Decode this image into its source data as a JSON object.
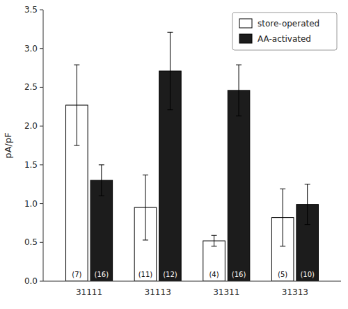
{
  "chart_data": {
    "type": "bar",
    "categories": [
      "31111",
      "31113",
      "31311",
      "31313"
    ],
    "ylabel": "pA/pF",
    "ylim": [
      0,
      3.5
    ],
    "yticks": [
      {
        "value": 0,
        "label": "0.0"
      },
      0.5,
      {
        "value": 1,
        "label": "1.0"
      },
      1.5,
      {
        "value": 2,
        "label": "2.0"
      },
      2.5,
      {
        "value": 3,
        "label": "3.0"
      },
      3.5
    ],
    "legend": "upper right",
    "series": [
      {
        "name": "store-operated",
        "color": "#ffffff",
        "values": [
          2.27,
          0.95,
          0.52,
          0.82
        ],
        "errors": [
          0.52,
          0.42,
          0.07,
          0.37
        ],
        "n_labels": [
          "(7)",
          "(11)",
          "(4)",
          "(5)"
        ]
      },
      {
        "name": "AA-activated",
        "color": "#1c1c1c",
        "values": [
          1.3,
          2.71,
          2.46,
          0.99
        ],
        "errors": [
          0.2,
          0.5,
          0.33,
          0.26
        ],
        "n_labels": [
          "(16)",
          "(12)",
          "(16)",
          "(10)"
        ]
      }
    ]
  }
}
